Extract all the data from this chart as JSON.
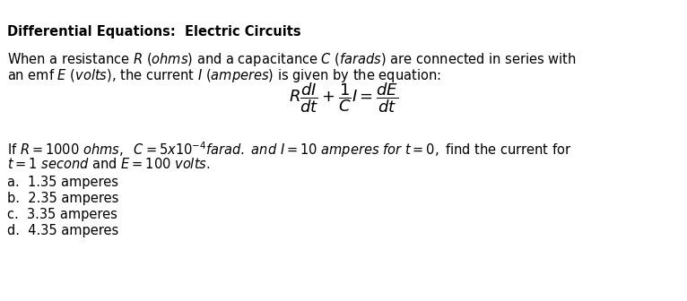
{
  "title": "Differential Equations:  Electric Circuits",
  "bg_color": "#ffffff",
  "text_color": "#000000",
  "figsize": [
    7.66,
    3.36
  ],
  "dpi": 100,
  "font_size": 10.5,
  "eq_font_size": 13,
  "lines": [
    "When a resistance $R$ $(ohms)$ and a capacitance $C$ $(farads)$ are connected in series with",
    "an emf $E$ $(volts)$, the current $I$ $(amperes)$ is given by the equation:"
  ],
  "line3": "If $R = 1000$ $ohms,\\;$ $C = 5x10^{-4}$$farad.$ $and$ $I = 10$ $amperes$ $for$ $t = 0,$ find the current for",
  "line4": "$t = 1$ $second$ and $E = 100$ $volts.$",
  "choices": [
    "a.  1.35 amperes",
    "b.  2.35 amperes",
    "c.  3.35 amperes",
    "d.  4.35 amperes"
  ]
}
